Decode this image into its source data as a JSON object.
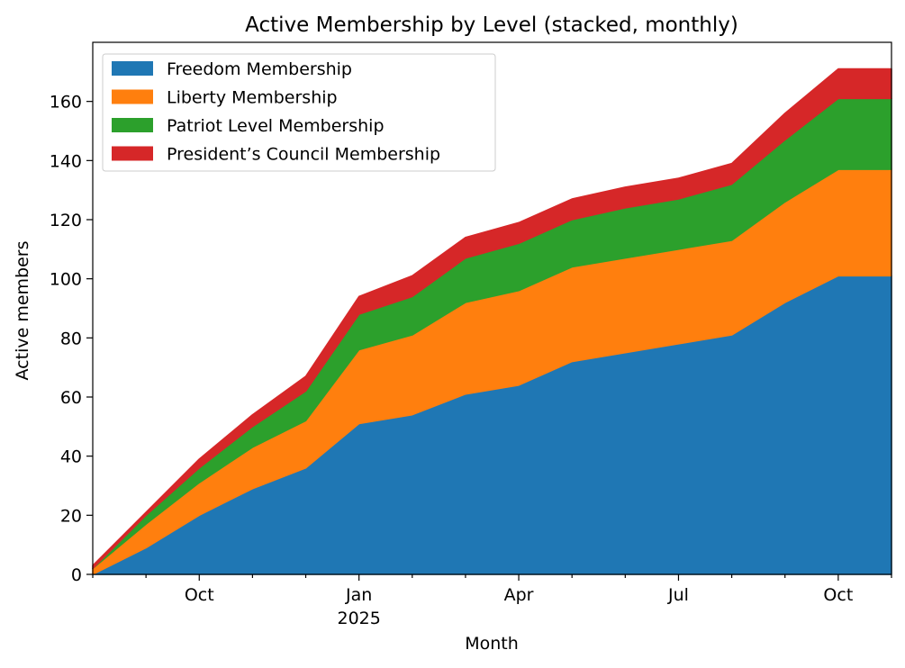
{
  "chart_data": {
    "type": "area",
    "stacked": true,
    "title": "Active Membership by Level (stacked, monthly)",
    "xlabel": "Month",
    "ylabel": "Active members",
    "ylim": [
      0,
      180
    ],
    "yticks": [
      0,
      20,
      40,
      60,
      80,
      100,
      120,
      140,
      160
    ],
    "x": [
      "2024-08",
      "2024-09",
      "2024-10",
      "2024-11",
      "2024-12",
      "2025-01",
      "2025-02",
      "2025-03",
      "2025-04",
      "2025-05",
      "2025-06",
      "2025-07",
      "2025-08",
      "2025-09",
      "2025-10",
      "2025-11"
    ],
    "xlim": [
      "2024-08",
      "2025-11"
    ],
    "xtick_labels": [
      {
        "x": "2024-10",
        "label": "Oct"
      },
      {
        "x": "2025-01",
        "label": "Jan",
        "sublabel": "2025"
      },
      {
        "x": "2025-04",
        "label": "Apr"
      },
      {
        "x": "2025-07",
        "label": "Jul"
      },
      {
        "x": "2025-10",
        "label": "Oct"
      }
    ],
    "legend_position": "top-left",
    "grid": false,
    "series": [
      {
        "name": "Freedom Membership",
        "color": "#1f77b4",
        "values": [
          0,
          9,
          20,
          29,
          36,
          51,
          54,
          61,
          64,
          72,
          75,
          78,
          81,
          92,
          101,
          101
        ]
      },
      {
        "name": "Liberty Membership",
        "color": "#ff7f0e",
        "values": [
          2,
          8,
          11,
          14,
          16,
          25,
          27,
          31,
          32,
          32,
          32,
          32,
          32,
          34,
          36,
          36
        ]
      },
      {
        "name": "Patriot Level Membership",
        "color": "#2ca02c",
        "values": [
          0,
          3,
          5,
          7,
          10,
          12,
          13,
          15,
          16,
          16,
          17,
          17,
          19,
          21,
          24,
          24
        ]
      },
      {
        "name": "President’s Council Membership",
        "color": "#d62728",
        "values": [
          1,
          1,
          3,
          4,
          5,
          6,
          7,
          7,
          7,
          7,
          7,
          7,
          7,
          9,
          10,
          10
        ]
      }
    ]
  }
}
